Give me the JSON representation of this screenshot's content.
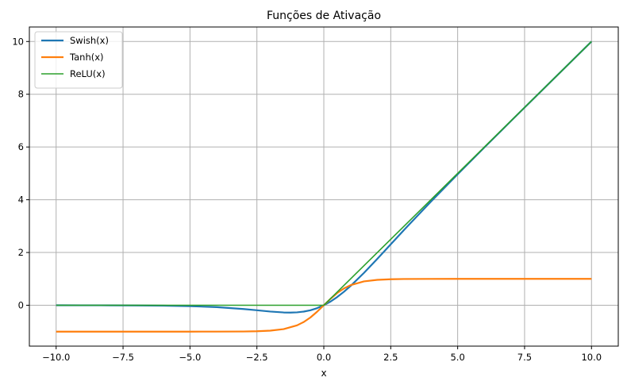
{
  "chart_data": {
    "type": "line",
    "title": "Funções de Ativação",
    "xlabel": "x",
    "ylabel": "",
    "xlim": [
      -11.0,
      11.0
    ],
    "ylim": [
      -1.55,
      10.55
    ],
    "grid": true,
    "legend_position": "top-left",
    "x_ticks": [
      -10.0,
      -7.5,
      -5.0,
      -2.5,
      0.0,
      2.5,
      5.0,
      7.5,
      10.0
    ],
    "x_tick_labels": [
      "−10.0",
      "−7.5",
      "−5.0",
      "−2.5",
      "0.0",
      "2.5",
      "5.0",
      "7.5",
      "10.0"
    ],
    "y_ticks": [
      0,
      2,
      4,
      6,
      8,
      10
    ],
    "y_tick_labels": [
      "0",
      "2",
      "4",
      "6",
      "8",
      "10"
    ],
    "series": [
      {
        "name": "Swish(x)",
        "color": "#1f77b4",
        "x": [
          -10,
          -9,
          -8,
          -7,
          -6,
          -5,
          -4,
          -3,
          -2.5,
          -2,
          -1.5,
          -1.25,
          -1,
          -0.75,
          -0.5,
          -0.25,
          0,
          0.25,
          0.5,
          0.75,
          1,
          1.5,
          2,
          2.5,
          3,
          4,
          5,
          6,
          7,
          8,
          9,
          10
        ],
        "y": [
          -0.0005,
          -0.0011,
          -0.0027,
          -0.0064,
          -0.0148,
          -0.0335,
          -0.0719,
          -0.1423,
          -0.1896,
          -0.2384,
          -0.2736,
          -0.2781,
          -0.2689,
          -0.2403,
          -0.1888,
          -0.1098,
          0,
          0.1402,
          0.3112,
          0.5097,
          0.7311,
          1.2264,
          1.7616,
          2.3104,
          2.8577,
          3.9281,
          4.9665,
          5.9852,
          6.9936,
          7.9973,
          8.9989,
          9.9995
        ]
      },
      {
        "name": "Tanh(x)",
        "color": "#ff7f0e",
        "x": [
          -10,
          -8,
          -6,
          -5,
          -4,
          -3,
          -2.5,
          -2,
          -1.5,
          -1,
          -0.75,
          -0.5,
          -0.25,
          0,
          0.25,
          0.5,
          0.75,
          1,
          1.5,
          2,
          2.5,
          3,
          4,
          5,
          6,
          8,
          10
        ],
        "y": [
          -1,
          -1,
          -1,
          -0.9999,
          -0.9993,
          -0.9951,
          -0.9866,
          -0.964,
          -0.9051,
          -0.7616,
          -0.6351,
          -0.4621,
          -0.2449,
          0,
          0.2449,
          0.4621,
          0.6351,
          0.7616,
          0.9051,
          0.964,
          0.9866,
          0.9951,
          0.9993,
          0.9999,
          1,
          1,
          1
        ]
      },
      {
        "name": "ReLU(x)",
        "color": "#2ca02c",
        "x": [
          -10,
          0,
          10
        ],
        "y": [
          0,
          0,
          10
        ]
      }
    ]
  }
}
